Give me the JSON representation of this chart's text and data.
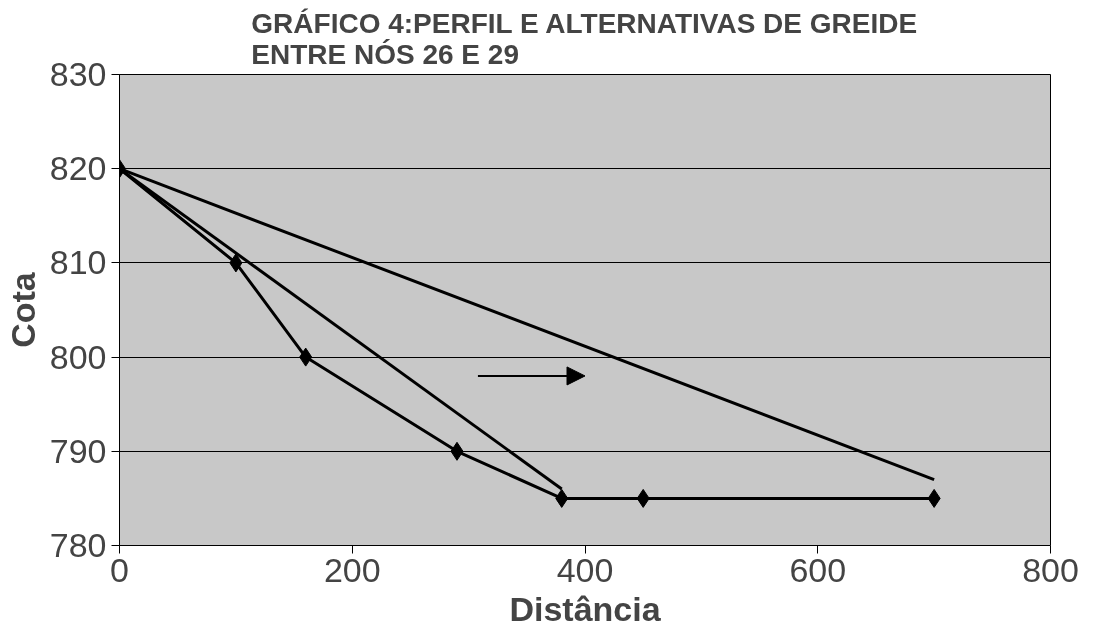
{
  "chart_data": {
    "type": "line",
    "title": "GRÁFICO 4:PERFIL E ALTERNATIVAS DE GREIDE ENTRE NÓS 26 E 29",
    "xlabel": "Distância",
    "ylabel": "Cota",
    "series": [
      {
        "color": "#000000",
        "x": [
          0,
          100,
          160,
          290,
          380,
          450,
          700
        ],
        "values": [
          820,
          810,
          800,
          790,
          785,
          785,
          785
        ],
        "marker": "diamond"
      },
      {
        "color": "#000000",
        "x": [
          0,
          380
        ],
        "values": [
          820,
          786
        ],
        "marker": "none"
      },
      {
        "color": "#000000",
        "x": [
          0,
          700
        ],
        "values": [
          820,
          787
        ],
        "marker": "none"
      }
    ],
    "xlim": [
      0,
      800
    ],
    "xticks": [
      0,
      200,
      400,
      600,
      800
    ],
    "ylim": [
      780,
      830
    ],
    "yticks": [
      780,
      790,
      800,
      810,
      820,
      830
    ],
    "grid": "y",
    "line_style": "solid"
  }
}
